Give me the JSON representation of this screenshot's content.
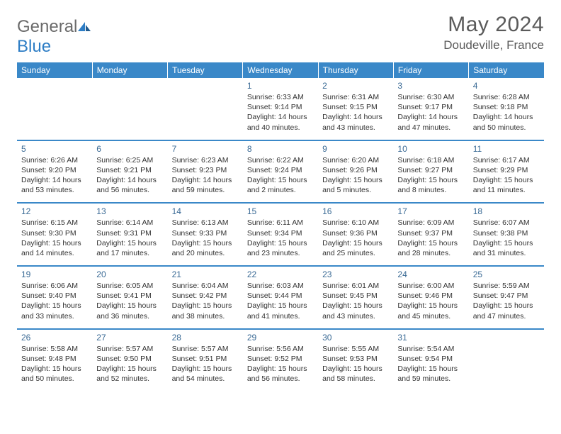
{
  "logo": {
    "text_part1": "General",
    "text_part2": "Blue"
  },
  "title": "May 2024",
  "location": "Doudeville, France",
  "header_bg": "#3a88c8",
  "weekdays": [
    "Sunday",
    "Monday",
    "Tuesday",
    "Wednesday",
    "Thursday",
    "Friday",
    "Saturday"
  ],
  "weeks": [
    [
      null,
      null,
      null,
      {
        "d": "1",
        "sr": "6:33 AM",
        "ss": "9:14 PM",
        "dl": "14 hours and 40 minutes."
      },
      {
        "d": "2",
        "sr": "6:31 AM",
        "ss": "9:15 PM",
        "dl": "14 hours and 43 minutes."
      },
      {
        "d": "3",
        "sr": "6:30 AM",
        "ss": "9:17 PM",
        "dl": "14 hours and 47 minutes."
      },
      {
        "d": "4",
        "sr": "6:28 AM",
        "ss": "9:18 PM",
        "dl": "14 hours and 50 minutes."
      }
    ],
    [
      {
        "d": "5",
        "sr": "6:26 AM",
        "ss": "9:20 PM",
        "dl": "14 hours and 53 minutes."
      },
      {
        "d": "6",
        "sr": "6:25 AM",
        "ss": "9:21 PM",
        "dl": "14 hours and 56 minutes."
      },
      {
        "d": "7",
        "sr": "6:23 AM",
        "ss": "9:23 PM",
        "dl": "14 hours and 59 minutes."
      },
      {
        "d": "8",
        "sr": "6:22 AM",
        "ss": "9:24 PM",
        "dl": "15 hours and 2 minutes."
      },
      {
        "d": "9",
        "sr": "6:20 AM",
        "ss": "9:26 PM",
        "dl": "15 hours and 5 minutes."
      },
      {
        "d": "10",
        "sr": "6:18 AM",
        "ss": "9:27 PM",
        "dl": "15 hours and 8 minutes."
      },
      {
        "d": "11",
        "sr": "6:17 AM",
        "ss": "9:29 PM",
        "dl": "15 hours and 11 minutes."
      }
    ],
    [
      {
        "d": "12",
        "sr": "6:15 AM",
        "ss": "9:30 PM",
        "dl": "15 hours and 14 minutes."
      },
      {
        "d": "13",
        "sr": "6:14 AM",
        "ss": "9:31 PM",
        "dl": "15 hours and 17 minutes."
      },
      {
        "d": "14",
        "sr": "6:13 AM",
        "ss": "9:33 PM",
        "dl": "15 hours and 20 minutes."
      },
      {
        "d": "15",
        "sr": "6:11 AM",
        "ss": "9:34 PM",
        "dl": "15 hours and 23 minutes."
      },
      {
        "d": "16",
        "sr": "6:10 AM",
        "ss": "9:36 PM",
        "dl": "15 hours and 25 minutes."
      },
      {
        "d": "17",
        "sr": "6:09 AM",
        "ss": "9:37 PM",
        "dl": "15 hours and 28 minutes."
      },
      {
        "d": "18",
        "sr": "6:07 AM",
        "ss": "9:38 PM",
        "dl": "15 hours and 31 minutes."
      }
    ],
    [
      {
        "d": "19",
        "sr": "6:06 AM",
        "ss": "9:40 PM",
        "dl": "15 hours and 33 minutes."
      },
      {
        "d": "20",
        "sr": "6:05 AM",
        "ss": "9:41 PM",
        "dl": "15 hours and 36 minutes."
      },
      {
        "d": "21",
        "sr": "6:04 AM",
        "ss": "9:42 PM",
        "dl": "15 hours and 38 minutes."
      },
      {
        "d": "22",
        "sr": "6:03 AM",
        "ss": "9:44 PM",
        "dl": "15 hours and 41 minutes."
      },
      {
        "d": "23",
        "sr": "6:01 AM",
        "ss": "9:45 PM",
        "dl": "15 hours and 43 minutes."
      },
      {
        "d": "24",
        "sr": "6:00 AM",
        "ss": "9:46 PM",
        "dl": "15 hours and 45 minutes."
      },
      {
        "d": "25",
        "sr": "5:59 AM",
        "ss": "9:47 PM",
        "dl": "15 hours and 47 minutes."
      }
    ],
    [
      {
        "d": "26",
        "sr": "5:58 AM",
        "ss": "9:48 PM",
        "dl": "15 hours and 50 minutes."
      },
      {
        "d": "27",
        "sr": "5:57 AM",
        "ss": "9:50 PM",
        "dl": "15 hours and 52 minutes."
      },
      {
        "d": "28",
        "sr": "5:57 AM",
        "ss": "9:51 PM",
        "dl": "15 hours and 54 minutes."
      },
      {
        "d": "29",
        "sr": "5:56 AM",
        "ss": "9:52 PM",
        "dl": "15 hours and 56 minutes."
      },
      {
        "d": "30",
        "sr": "5:55 AM",
        "ss": "9:53 PM",
        "dl": "15 hours and 58 minutes."
      },
      {
        "d": "31",
        "sr": "5:54 AM",
        "ss": "9:54 PM",
        "dl": "15 hours and 59 minutes."
      },
      null
    ]
  ],
  "labels": {
    "sunrise": "Sunrise:",
    "sunset": "Sunset:",
    "daylight": "Daylight:"
  }
}
